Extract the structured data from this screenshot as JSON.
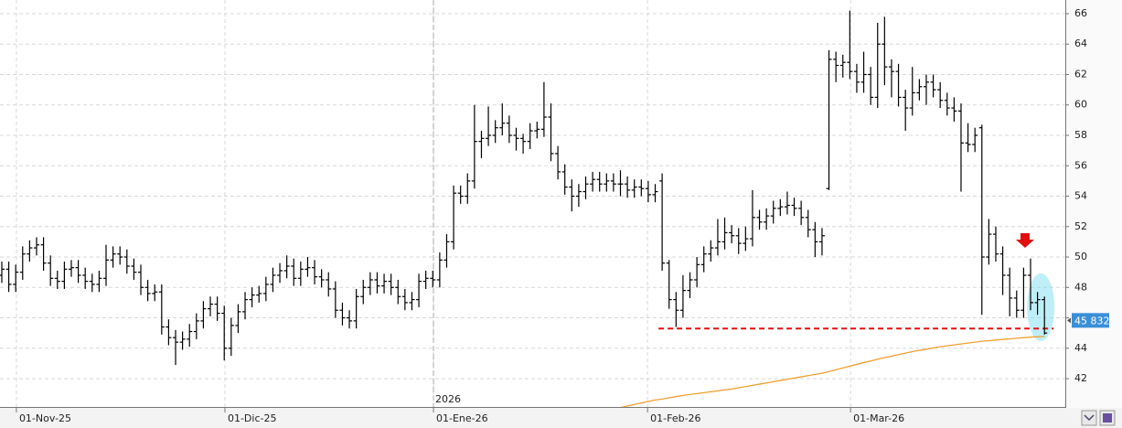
{
  "chart_data": {
    "type": "ohlc",
    "color": "#000000",
    "x": [
      0,
      1,
      2,
      3,
      4,
      5,
      6,
      7,
      8,
      9,
      10,
      11,
      12,
      13,
      14,
      15,
      16,
      17,
      18,
      19,
      20,
      21,
      22,
      23,
      24,
      25,
      26,
      27,
      28,
      29,
      30,
      31,
      32,
      33,
      34,
      35,
      36,
      37,
      38,
      39,
      40,
      41,
      42,
      43,
      44,
      45,
      46,
      47,
      48,
      49,
      50,
      51,
      52,
      53,
      54,
      55,
      56,
      57,
      58,
      59,
      60,
      61,
      62,
      63,
      64,
      65,
      66,
      67,
      68,
      69,
      70,
      71,
      72,
      73,
      74,
      75,
      76,
      77,
      78,
      79,
      80,
      81,
      82,
      83,
      84,
      85,
      86,
      87,
      88,
      89,
      90,
      91,
      92,
      93,
      94,
      95,
      96,
      97,
      98,
      99,
      100,
      101,
      102,
      103,
      104,
      105,
      106,
      107,
      108,
      109,
      110,
      111,
      112,
      113,
      114,
      115,
      116,
      117,
      118,
      119,
      120,
      121,
      122,
      123,
      124,
      125,
      126,
      127,
      128,
      129,
      130,
      131,
      132,
      133,
      134,
      135,
      136,
      137,
      138,
      139,
      140,
      141,
      142,
      143,
      144,
      145,
      146,
      147,
      148,
      149,
      150
    ],
    "open": [
      48.8,
      49.2,
      48.2,
      49.0,
      50.2,
      50.6,
      50.8,
      49.6,
      48.6,
      48.4,
      49.2,
      49.3,
      48.8,
      48.4,
      48.2,
      48.6,
      49.8,
      50.2,
      50.0,
      49.4,
      49.0,
      48.0,
      47.6,
      47.7,
      45.4,
      44.7,
      44.4,
      44.6,
      45.1,
      45.8,
      46.6,
      46.9,
      46.3,
      44.0,
      45.5,
      46.4,
      47.2,
      47.5,
      47.6,
      48.2,
      48.8,
      49.1,
      49.4,
      48.6,
      49.2,
      49.3,
      48.7,
      48.5,
      47.9,
      46.5,
      46.0,
      45.8,
      47.4,
      48.0,
      48.5,
      48.1,
      48.4,
      48.0,
      47.4,
      47.0,
      47.2,
      48.4,
      48.6,
      48.5,
      49.8,
      51.0,
      54.2,
      54.0,
      55.0,
      57.6,
      57.8,
      58.0,
      58.5,
      58.8,
      58.0,
      57.8,
      57.6,
      58.3,
      58.4,
      59.2,
      56.8,
      55.6,
      54.6,
      54.0,
      54.3,
      54.8,
      55.1,
      54.8,
      55.0,
      54.8,
      54.8,
      54.4,
      54.6,
      54.5,
      54.1,
      55.0,
      49.6,
      47.2,
      46.5,
      47.8,
      48.5,
      49.5,
      50.2,
      50.6,
      51.0,
      51.6,
      51.4,
      50.9,
      51.2,
      52.6,
      52.3,
      52.7,
      53.2,
      53.3,
      53.4,
      53.2,
      52.6,
      51.8,
      51.0,
      54.5,
      63.0,
      62.6,
      62.8,
      62.2,
      61.5,
      62.0,
      60.5,
      64.0,
      62.5,
      62.2,
      60.5,
      59.8,
      60.8,
      61.2,
      61.5,
      61.0,
      60.3,
      59.8,
      59.6,
      57.5,
      57.4,
      58.5,
      50.0,
      51.5,
      50.2,
      48.8,
      47.3,
      46.5,
      48.8,
      47.0,
      47.2
    ],
    "high": [
      49.7,
      49.7,
      49.5,
      50.7,
      51.1,
      51.3,
      51.3,
      50.1,
      49.1,
      49.7,
      49.8,
      49.8,
      49.3,
      48.9,
      49.1,
      50.8,
      50.7,
      50.7,
      50.5,
      49.9,
      49.5,
      48.5,
      48.2,
      48.2,
      45.9,
      45.2,
      45.1,
      45.6,
      46.3,
      47.1,
      47.4,
      47.4,
      46.8,
      46.0,
      46.9,
      47.7,
      48.0,
      48.1,
      48.7,
      49.3,
      49.6,
      50.1,
      49.9,
      49.7,
      50.0,
      49.8,
      49.2,
      49.0,
      48.4,
      47.0,
      46.5,
      47.9,
      48.5,
      49.0,
      49.0,
      48.9,
      48.9,
      48.5,
      47.9,
      47.7,
      48.9,
      49.1,
      49.1,
      50.3,
      51.5,
      54.7,
      54.7,
      55.5,
      60.0,
      58.3,
      59.9,
      59.0,
      60.1,
      59.3,
      58.5,
      58.1,
      58.8,
      58.9,
      61.5,
      60.1,
      57.3,
      56.1,
      55.1,
      54.8,
      55.3,
      55.6,
      55.6,
      55.5,
      55.5,
      55.7,
      55.3,
      55.1,
      55.1,
      55.0,
      54.8,
      55.5,
      49.8,
      47.7,
      48.8,
      49.0,
      50.0,
      50.7,
      51.1,
      52.5,
      52.6,
      52.1,
      51.9,
      52.0,
      54.4,
      53.1,
      53.2,
      53.7,
      53.8,
      54.3,
      53.9,
      53.7,
      53.1,
      52.3,
      51.9,
      63.6,
      63.5,
      63.3,
      66.2,
      62.7,
      63.5,
      62.5,
      65.4,
      65.8,
      63.0,
      62.7,
      61.0,
      62.5,
      61.7,
      62.0,
      62.0,
      61.5,
      60.8,
      60.5,
      60.1,
      58.8,
      58.5,
      58.7,
      52.5,
      52.0,
      50.7,
      49.3,
      47.8,
      49.3,
      49.9,
      47.7,
      47.4
    ],
    "low": [
      48.3,
      47.7,
      47.7,
      48.5,
      49.7,
      50.1,
      49.1,
      48.1,
      47.9,
      47.9,
      48.7,
      48.3,
      47.9,
      47.7,
      47.7,
      48.1,
      49.3,
      49.5,
      48.9,
      48.5,
      47.5,
      47.1,
      47.1,
      44.9,
      44.2,
      42.9,
      43.9,
      44.1,
      44.6,
      45.3,
      46.1,
      45.8,
      43.2,
      43.5,
      45.0,
      45.9,
      46.7,
      47.0,
      47.1,
      47.7,
      48.3,
      48.6,
      48.1,
      48.1,
      48.7,
      48.2,
      48.0,
      47.4,
      46.0,
      45.5,
      45.3,
      45.3,
      46.9,
      47.5,
      47.6,
      47.6,
      47.5,
      46.9,
      46.5,
      46.5,
      46.7,
      47.9,
      48.0,
      48.0,
      49.3,
      50.5,
      53.5,
      53.5,
      54.5,
      56.5,
      57.3,
      57.5,
      58.0,
      57.5,
      57.0,
      56.8,
      57.1,
      57.8,
      57.9,
      56.3,
      55.1,
      54.1,
      53.0,
      53.3,
      53.8,
      54.3,
      54.3,
      54.3,
      54.3,
      54.0,
      53.9,
      53.9,
      54.0,
      53.6,
      53.6,
      49.1,
      46.6,
      45.4,
      46.0,
      47.3,
      48.0,
      49.0,
      49.7,
      50.1,
      50.5,
      50.9,
      50.2,
      50.4,
      50.7,
      51.8,
      51.8,
      52.2,
      52.7,
      52.8,
      52.7,
      52.1,
      51.3,
      50.0,
      50.1,
      54.4,
      61.5,
      61.8,
      61.7,
      60.8,
      60.8,
      60.0,
      59.8,
      61.3,
      60.5,
      59.9,
      58.3,
      59.3,
      60.3,
      60.0,
      60.5,
      59.8,
      59.3,
      58.9,
      54.3,
      56.9,
      56.9,
      46.2,
      49.5,
      49.7,
      47.5,
      46.1,
      46.0,
      46.0,
      46.5,
      46.2,
      44.9
    ],
    "close": [
      49.2,
      48.2,
      49.0,
      50.2,
      50.6,
      50.8,
      49.6,
      48.6,
      48.4,
      49.2,
      49.3,
      48.8,
      48.4,
      48.2,
      48.6,
      49.8,
      50.2,
      50.0,
      49.4,
      49.0,
      48.0,
      47.6,
      47.7,
      45.4,
      44.7,
      44.4,
      44.6,
      45.1,
      45.8,
      46.6,
      46.9,
      46.3,
      44.0,
      45.5,
      46.4,
      47.2,
      47.5,
      47.6,
      48.2,
      48.8,
      49.1,
      49.4,
      48.6,
      49.2,
      49.3,
      48.7,
      48.5,
      47.9,
      46.5,
      46.0,
      45.8,
      47.4,
      48.0,
      48.5,
      48.1,
      48.4,
      48.0,
      47.4,
      47.0,
      47.2,
      48.4,
      48.6,
      48.5,
      49.8,
      51.0,
      54.2,
      54.0,
      55.0,
      57.6,
      57.8,
      58.0,
      58.5,
      58.8,
      58.0,
      57.8,
      57.6,
      58.3,
      58.4,
      59.2,
      56.8,
      55.6,
      54.6,
      54.0,
      54.3,
      54.8,
      55.1,
      54.8,
      55.0,
      54.8,
      54.8,
      54.4,
      54.6,
      54.5,
      54.1,
      54.3,
      49.6,
      47.2,
      46.5,
      47.8,
      48.5,
      49.5,
      50.2,
      50.6,
      51.0,
      51.6,
      51.4,
      50.9,
      51.2,
      52.6,
      52.3,
      52.7,
      53.2,
      53.3,
      53.4,
      53.2,
      52.6,
      51.8,
      51.0,
      51.4,
      63.0,
      62.6,
      62.8,
      62.2,
      61.5,
      62.0,
      60.5,
      64.0,
      62.5,
      62.2,
      60.5,
      59.8,
      60.8,
      61.2,
      61.5,
      61.0,
      60.3,
      59.8,
      59.6,
      57.5,
      57.4,
      58.0,
      50.0,
      51.5,
      50.2,
      48.8,
      47.3,
      46.5,
      48.8,
      47.0,
      47.2,
      45.0
    ],
    "moving_average": {
      "color": "#f0a030",
      "values": [
        null,
        null,
        null,
        null,
        null,
        null,
        null,
        null,
        null,
        null,
        null,
        null,
        null,
        null,
        null,
        null,
        null,
        null,
        null,
        null,
        null,
        null,
        null,
        null,
        null,
        null,
        null,
        null,
        null,
        null,
        null,
        null,
        null,
        null,
        null,
        null,
        null,
        null,
        null,
        null,
        null,
        null,
        null,
        null,
        null,
        null,
        null,
        null,
        null,
        null,
        null,
        null,
        null,
        null,
        null,
        null,
        null,
        null,
        null,
        null,
        null,
        null,
        null,
        null,
        null,
        null,
        null,
        null,
        null,
        null,
        null,
        null,
        null,
        null,
        null,
        null,
        null,
        null,
        null,
        null,
        null,
        null,
        null,
        null,
        null,
        null,
        null,
        null,
        null,
        40.1,
        40.2,
        40.3,
        40.4,
        40.5,
        40.6,
        40.66,
        40.74,
        40.82,
        40.9,
        40.96,
        41.02,
        41.08,
        41.14,
        41.2,
        41.26,
        41.32,
        41.4,
        41.48,
        41.56,
        41.64,
        41.72,
        41.8,
        41.88,
        41.96,
        42.04,
        42.12,
        42.2,
        42.28,
        42.36,
        42.46,
        42.58,
        42.7,
        42.82,
        42.94,
        43.06,
        43.16,
        43.28,
        43.38,
        43.48,
        43.58,
        43.68,
        43.78,
        43.86,
        43.94,
        44.02,
        44.1,
        44.16,
        44.22,
        44.28,
        44.34,
        44.4,
        44.46,
        44.5,
        44.54,
        44.58,
        44.62,
        44.66,
        44.7,
        44.73,
        44.76,
        44.78
      ]
    },
    "support_level": {
      "value": 45.3,
      "color": "#dd1111"
    },
    "last_price": {
      "value": 45.832,
      "label": "45 832"
    },
    "year_marker": {
      "value": 62.1,
      "label": "2026"
    },
    "xlim": [
      -0.26,
      153
    ],
    "xticks": [
      {
        "value": 2.1,
        "label": "01-Nov-25"
      },
      {
        "value": 32.1,
        "label": "01-Dic-25"
      },
      {
        "value": 62.1,
        "label": "01-Ene-26"
      },
      {
        "value": 92.9,
        "label": "01-Feb-26"
      },
      {
        "value": 122.1,
        "label": "01-Mar-26"
      }
    ],
    "ylim": [
      40.14,
      66.9
    ],
    "yticks": [
      42,
      44,
      46,
      48,
      50,
      52,
      54,
      56,
      58,
      60,
      62,
      64,
      66
    ],
    "grid": true
  }
}
